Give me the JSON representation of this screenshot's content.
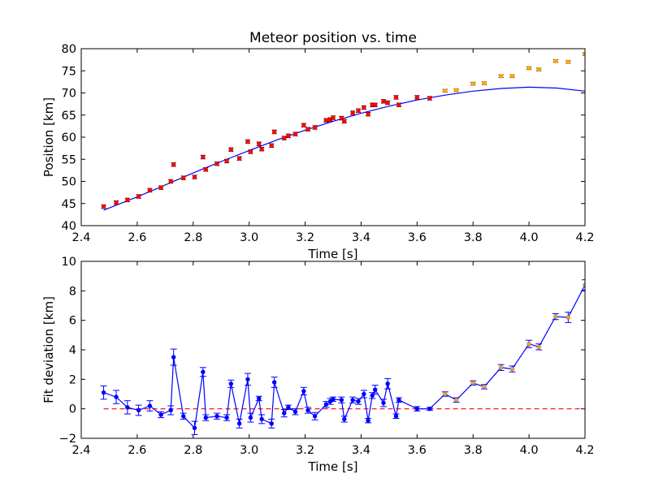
{
  "chart_data": [
    {
      "type": "scatter",
      "title": "Meteor position vs. time",
      "xlabel": "Time [s]",
      "ylabel": "Position [km]",
      "xlim": [
        2.4,
        4.2
      ],
      "ylim": [
        40,
        80
      ],
      "xticks": [
        "2.4",
        "2.6",
        "2.8",
        "3.0",
        "3.2",
        "3.4",
        "3.6",
        "3.8",
        "4.0",
        "4.2"
      ],
      "yticks": [
        "40",
        "45",
        "50",
        "55",
        "60",
        "65",
        "70",
        "75",
        "80"
      ],
      "grid": false,
      "series": [
        {
          "marker_color": "#ff0000",
          "error": 0.4,
          "x": [
            2.48,
            2.525,
            2.565,
            2.605,
            2.645,
            2.685,
            2.72,
            2.73,
            2.765,
            2.805,
            2.835,
            2.845,
            2.885,
            2.92,
            2.935,
            2.965,
            2.995,
            3.005,
            3.035,
            3.045,
            3.08,
            3.09,
            3.125,
            3.14,
            3.165,
            3.195,
            3.21,
            3.235,
            3.275,
            3.29,
            3.3,
            3.33,
            3.34,
            3.37,
            3.39,
            3.41,
            3.425,
            3.44,
            3.45,
            3.48,
            3.495,
            3.525,
            3.535,
            3.6,
            3.645
          ],
          "y": [
            44.3,
            45.2,
            45.8,
            46.6,
            48.0,
            48.6,
            50.0,
            53.8,
            50.8,
            51.0,
            55.5,
            52.7,
            54.0,
            54.6,
            57.2,
            55.2,
            59.0,
            56.7,
            58.5,
            57.3,
            58.1,
            61.2,
            59.8,
            60.3,
            60.7,
            62.7,
            61.8,
            62.2,
            63.8,
            64.0,
            64.4,
            64.3,
            63.6,
            65.5,
            66.0,
            66.7,
            65.2,
            67.3,
            67.3,
            68.1,
            67.8,
            69.0,
            67.3,
            69.0,
            68.8
          ]
        },
        {
          "marker_color": "#ffa500",
          "error": 0.3,
          "x": [
            3.7,
            3.74,
            3.8,
            3.84,
            3.9,
            3.94,
            4.0,
            4.035,
            4.095,
            4.14,
            4.2
          ],
          "y": [
            70.5,
            70.6,
            72.1,
            72.2,
            73.8,
            73.8,
            75.6,
            75.3,
            77.2,
            77.0,
            78.8
          ]
        }
      ],
      "fit_line": {
        "color": "#0000ff",
        "x": [
          2.48,
          2.6,
          2.7,
          2.8,
          2.9,
          3.0,
          3.1,
          3.2,
          3.3,
          3.4,
          3.5,
          3.6,
          3.7,
          3.8,
          3.9,
          4.0,
          4.1,
          4.2
        ],
        "y": [
          43.5,
          46.5,
          49.2,
          51.9,
          54.5,
          57.0,
          59.4,
          61.6,
          63.6,
          65.4,
          67.0,
          68.4,
          69.5,
          70.4,
          71.0,
          71.3,
          71.1,
          70.4
        ]
      }
    },
    {
      "type": "line",
      "xlabel": "Time [s]",
      "ylabel": "Fit deviation [km]",
      "xlim": [
        2.4,
        4.2
      ],
      "ylim": [
        -2,
        10
      ],
      "xticks": [
        "2.4",
        "2.6",
        "2.8",
        "3.0",
        "3.2",
        "3.4",
        "3.6",
        "3.8",
        "4.0",
        "4.2"
      ],
      "yticks": [
        "−2",
        "0",
        "2",
        "4",
        "6",
        "8",
        "10"
      ],
      "grid": false,
      "reference_line": {
        "y": 0,
        "color": "#ff0000",
        "style": "dashed"
      },
      "series": [
        {
          "color": "#0000ff",
          "marker_colors": [
            "#0000ff",
            "#ffa500"
          ],
          "x": [
            2.48,
            2.525,
            2.565,
            2.605,
            2.645,
            2.685,
            2.72,
            2.73,
            2.765,
            2.805,
            2.835,
            2.845,
            2.885,
            2.92,
            2.935,
            2.965,
            2.995,
            3.005,
            3.035,
            3.045,
            3.08,
            3.09,
            3.125,
            3.14,
            3.165,
            3.195,
            3.21,
            3.235,
            3.275,
            3.29,
            3.3,
            3.33,
            3.34,
            3.37,
            3.39,
            3.41,
            3.425,
            3.44,
            3.45,
            3.48,
            3.495,
            3.525,
            3.535,
            3.6,
            3.645,
            3.7,
            3.74,
            3.8,
            3.84,
            3.9,
            3.94,
            4.0,
            4.035,
            4.095,
            4.14,
            4.2
          ],
          "y": [
            1.1,
            0.8,
            0.1,
            -0.1,
            0.2,
            -0.4,
            -0.1,
            3.5,
            -0.5,
            -1.3,
            2.5,
            -0.6,
            -0.5,
            -0.6,
            1.7,
            -1.0,
            2.0,
            -0.6,
            0.7,
            -0.7,
            -1.0,
            1.8,
            -0.3,
            0.1,
            -0.2,
            1.2,
            -0.1,
            -0.5,
            0.3,
            0.5,
            0.65,
            0.6,
            -0.7,
            0.6,
            0.5,
            1.0,
            -0.8,
            0.9,
            1.3,
            0.4,
            1.7,
            -0.5,
            0.6,
            0.0,
            0.0,
            1.0,
            0.6,
            1.75,
            1.5,
            2.8,
            2.7,
            4.4,
            4.2,
            6.25,
            6.2,
            8.4
          ],
          "error": [
            0.45,
            0.45,
            0.45,
            0.35,
            0.35,
            0.2,
            0.3,
            0.55,
            0.2,
            0.45,
            0.3,
            0.2,
            0.2,
            0.2,
            0.25,
            0.3,
            0.4,
            0.3,
            0.15,
            0.3,
            0.3,
            0.35,
            0.25,
            0.15,
            0.2,
            0.25,
            0.2,
            0.25,
            0.2,
            0.2,
            0.15,
            0.2,
            0.2,
            0.2,
            0.2,
            0.25,
            0.15,
            0.2,
            0.3,
            0.25,
            0.35,
            0.15,
            0.15,
            0.15,
            0.1,
            0.15,
            0.15,
            0.15,
            0.15,
            0.2,
            0.2,
            0.25,
            0.2,
            0.2,
            0.35,
            0.35
          ]
        }
      ]
    }
  ]
}
